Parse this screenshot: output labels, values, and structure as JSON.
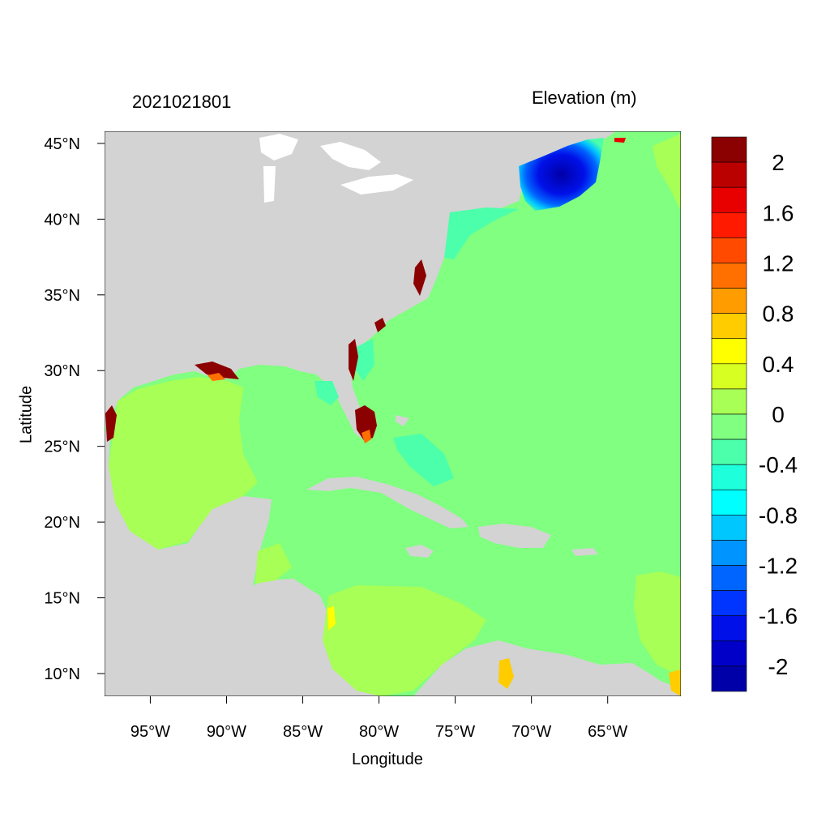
{
  "header": {
    "date_label": "2021021801",
    "variable_label": "Elevation (m)"
  },
  "axes": {
    "xlabel": "Longitude",
    "ylabel": "Latitude",
    "x_ticks": [
      "95°W",
      "90°W",
      "85°W",
      "80°W",
      "75°W",
      "70°W",
      "65°W"
    ],
    "x_tick_values": [
      -95,
      -90,
      -85,
      -80,
      -75,
      -70,
      -65
    ],
    "y_ticks": [
      "45°N",
      "40°N",
      "35°N",
      "30°N",
      "25°N",
      "20°N",
      "15°N",
      "10°N"
    ],
    "y_tick_values": [
      45,
      40,
      35,
      30,
      25,
      20,
      15,
      10
    ],
    "xlim": [
      -98,
      -60.2
    ],
    "ylim": [
      8.5,
      45.8
    ]
  },
  "colorbar": {
    "labels": [
      "2",
      "1.6",
      "1.2",
      "0.8",
      "0.4",
      "0",
      "-0.4",
      "-0.8",
      "-1.2",
      "-1.6",
      "-2"
    ],
    "colors": [
      "#8b0000",
      "#bb0000",
      "#e80000",
      "#ff1a00",
      "#ff4a00",
      "#ff7000",
      "#ff9c00",
      "#ffcc00",
      "#ffff00",
      "#d7ff22",
      "#a8ff55",
      "#80ff80",
      "#4cffaa",
      "#1effdb",
      "#00ffff",
      "#00c8ff",
      "#0094ff",
      "#0064ff",
      "#0034ff",
      "#0010e8",
      "#0000c8",
      "#0000a8"
    ]
  },
  "colors": {
    "land": "#d3d3d3",
    "ocean": "#80ff80",
    "gulf": "#a8ff55",
    "surge_low": "#0010e8",
    "surge_high": "#8b0000"
  }
}
